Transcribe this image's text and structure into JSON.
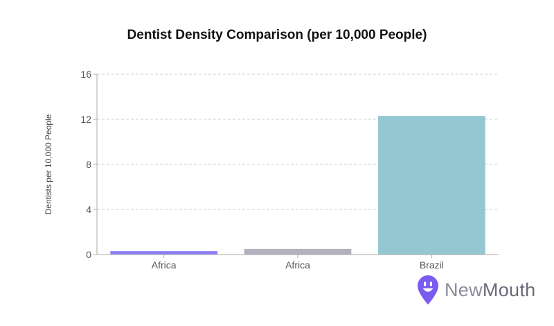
{
  "chart_data": {
    "type": "bar",
    "title": "Dentist Density Comparison (per 10,000 People)",
    "ylabel": "Dentists per 10,000 People",
    "xlabel": "",
    "categories": [
      "Africa",
      "Africa",
      "Brazil"
    ],
    "values": [
      0.3,
      0.5,
      12.3
    ],
    "bar_colors": [
      "#8b7cf6",
      "#b3b1bd",
      "#93c7d2"
    ],
    "ylim": [
      0,
      16
    ],
    "yticks": [
      0,
      4,
      8,
      12,
      16
    ],
    "grid": true,
    "legend": "none"
  },
  "brand": {
    "name_part1": "New",
    "name_part2": "Mouth",
    "icon": "smiling-location-pin-icon",
    "color": "#7b5cf0"
  }
}
